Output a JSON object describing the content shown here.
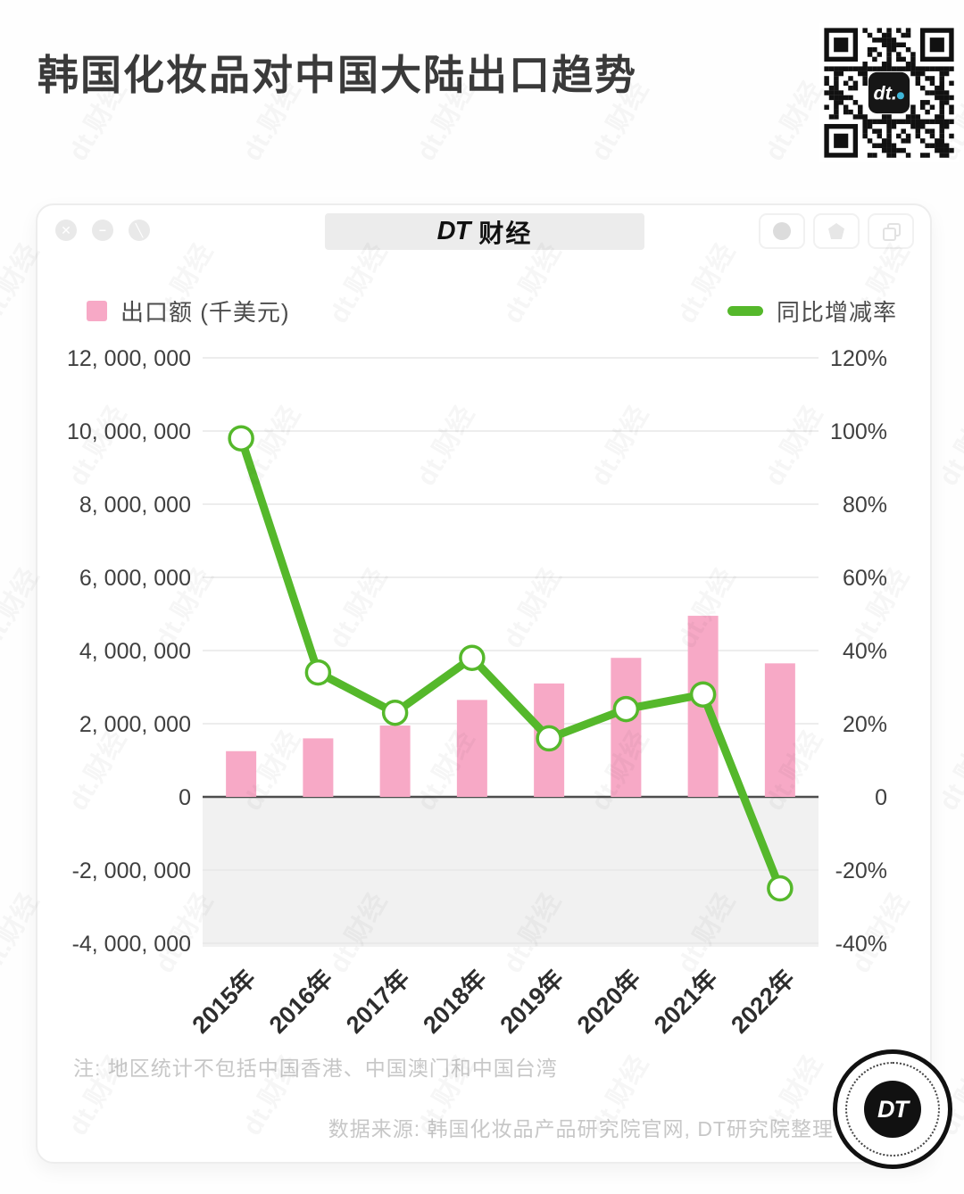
{
  "page": {
    "title": "韩国化妆品对中国大陆出口趋势",
    "watermark_text": "dt.财经"
  },
  "window": {
    "tab": {
      "brand": "DT",
      "suffix": "财经"
    },
    "controls": [
      {
        "name": "close",
        "glyph": "✕"
      },
      {
        "name": "minimize",
        "glyph": "−"
      },
      {
        "name": "collapse",
        "glyph": "╲"
      }
    ]
  },
  "legend": {
    "bar_label": "出口额 (千美元)",
    "line_label": "同比增减率"
  },
  "chart_data": {
    "type": "combo-bar-line",
    "title": "韩国化妆品对中国大陆出口趋势",
    "categories": [
      "2015年",
      "2016年",
      "2017年",
      "2018年",
      "2019年",
      "2020年",
      "2021年",
      "2022年"
    ],
    "series": [
      {
        "name": "出口额 (千美元)",
        "type": "bar",
        "axis": "left",
        "color": "#F7A9C6",
        "values": [
          1250000,
          1600000,
          1950000,
          2650000,
          3100000,
          3800000,
          4950000,
          3650000
        ]
      },
      {
        "name": "同比增减率",
        "type": "line",
        "axis": "right",
        "color": "#55B82B",
        "values": [
          98,
          34,
          23,
          38,
          16,
          24,
          28,
          -25
        ]
      }
    ],
    "left_axis": {
      "min": -4000000,
      "max": 12000000,
      "step": 2000000,
      "tick_labels": [
        "12, 000, 000",
        "10, 000, 000",
        "8, 000, 000",
        "6, 000, 000",
        "4, 000, 000",
        "2, 000, 000",
        "0",
        "-2, 000, 000",
        "-4, 000, 000"
      ]
    },
    "right_axis": {
      "min": -40,
      "max": 120,
      "step": 20,
      "tick_labels": [
        "120%",
        "100%",
        "80%",
        "60%",
        "40%",
        "20%",
        "0",
        "-20%",
        "-40%"
      ]
    },
    "grid": true,
    "legend_position": "top",
    "negative_area_shaded": true
  },
  "footer": {
    "note": "注: 地区统计不包括中国香港、中国澳门和中国台湾",
    "source": "数据来源: 韩国化妆品产品研究院官网, DT研究院整理"
  },
  "logo": {
    "text": "DT",
    "qr_center": "dt."
  }
}
